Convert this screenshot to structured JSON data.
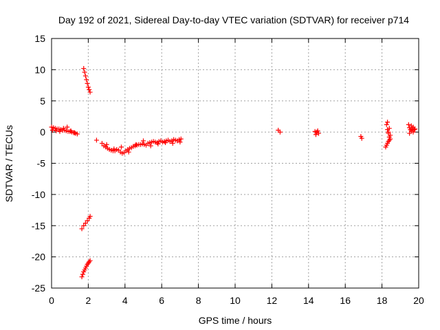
{
  "chart_data": {
    "type": "scatter",
    "title": "Day 192 of 2021, Sidereal Day-to-day VTEC variation (SDTVAR) for receiver p714",
    "xlabel": "GPS time / hours",
    "ylabel": "SDTVAR / TECUs",
    "xlim": [
      0,
      20
    ],
    "ylim": [
      -25,
      15
    ],
    "xticks": [
      0,
      2,
      4,
      6,
      8,
      10,
      12,
      14,
      16,
      18,
      20
    ],
    "yticks": [
      -25,
      -20,
      -15,
      -10,
      -5,
      0,
      5,
      10,
      15
    ],
    "grid": true,
    "marker": "+",
    "color": "#ff0000",
    "series": [
      {
        "name": "segment-0",
        "x": [
          0.0,
          0.1,
          0.2,
          0.3,
          0.4,
          0.5,
          0.6,
          0.7,
          0.8,
          0.9,
          1.0,
          1.1,
          1.2,
          1.3,
          1.4,
          0.05,
          0.25,
          0.45,
          0.65,
          0.85,
          1.05,
          1.25
        ],
        "y": [
          0.8,
          0.7,
          0.6,
          0.5,
          0.5,
          0.4,
          0.3,
          0.3,
          0.2,
          0.1,
          0.1,
          0.0,
          -0.1,
          -0.2,
          -0.3,
          0.3,
          0.2,
          0.1,
          0.6,
          0.8,
          0.2,
          -0.1
        ]
      },
      {
        "name": "segment-1",
        "x": [
          1.75,
          1.8,
          1.85,
          1.9,
          1.95,
          2.0,
          2.05,
          2.1
        ],
        "y": [
          10.2,
          9.6,
          9.0,
          8.4,
          7.8,
          7.2,
          6.8,
          6.4
        ]
      },
      {
        "name": "segment-2",
        "x": [
          1.65,
          1.75,
          1.85,
          1.95,
          2.05,
          2.1
        ],
        "y": [
          -15.5,
          -15.0,
          -14.6,
          -14.2,
          -13.8,
          -13.5
        ]
      },
      {
        "name": "segment-3",
        "x": [
          1.65,
          1.7,
          1.75,
          1.8,
          1.85,
          1.9,
          1.95,
          2.0,
          2.05,
          2.1
        ],
        "y": [
          -23.2,
          -22.8,
          -22.4,
          -22.1,
          -21.8,
          -21.5,
          -21.2,
          -21.0,
          -20.8,
          -20.6
        ]
      },
      {
        "name": "segment-4",
        "x": [
          2.45
        ],
        "y": [
          -1.3
        ]
      },
      {
        "name": "segment-5",
        "x": [
          2.75,
          2.85,
          2.95,
          3.05,
          3.15,
          3.25,
          3.35,
          3.45,
          3.55,
          3.65,
          3.75,
          3.85,
          3.95,
          4.05,
          4.15,
          4.25,
          4.35,
          4.45,
          4.55,
          4.65,
          4.75,
          4.85,
          4.95,
          5.05,
          5.15,
          5.25,
          5.35,
          5.45,
          5.55,
          5.65,
          5.75,
          5.85,
          5.95,
          6.05,
          6.15,
          6.25,
          6.35,
          6.45,
          6.55,
          6.65,
          6.75,
          6.85,
          6.95,
          7.05,
          3.0,
          3.4,
          3.8,
          4.2,
          4.6,
          5.0,
          5.4,
          5.8,
          6.2,
          6.6,
          7.0
        ],
        "y": [
          -1.8,
          -2.2,
          -2.4,
          -2.6,
          -2.8,
          -2.9,
          -3.0,
          -3.0,
          -2.8,
          -2.9,
          -3.2,
          -3.4,
          -3.3,
          -3.0,
          -2.8,
          -2.6,
          -2.5,
          -2.3,
          -2.2,
          -2.1,
          -2.0,
          -2.0,
          -1.9,
          -2.0,
          -2.1,
          -1.8,
          -1.7,
          -1.6,
          -1.5,
          -1.6,
          -1.7,
          -1.5,
          -1.4,
          -1.6,
          -1.5,
          -1.4,
          -1.3,
          -1.5,
          -1.4,
          -1.2,
          -1.3,
          -1.4,
          -1.2,
          -1.1,
          -2.0,
          -2.7,
          -2.4,
          -3.2,
          -2.0,
          -1.4,
          -2.2,
          -1.9,
          -1.7,
          -1.8,
          -1.6
        ]
      },
      {
        "name": "segment-6",
        "x": [
          12.35,
          12.45
        ],
        "y": [
          0.3,
          0.0
        ]
      },
      {
        "name": "segment-7",
        "x": [
          14.35,
          14.45,
          14.55,
          14.4,
          14.5
        ],
        "y": [
          0.1,
          0.0,
          -0.2,
          -0.4,
          0.2
        ]
      },
      {
        "name": "segment-8",
        "x": [
          16.85,
          16.9
        ],
        "y": [
          -0.7,
          -1.0
        ]
      },
      {
        "name": "segment-9",
        "x": [
          18.25,
          18.3,
          18.35,
          18.4,
          18.45,
          18.3,
          18.35,
          18.4
        ],
        "y": [
          1.2,
          0.4,
          -0.2,
          0.6,
          -0.5,
          1.6,
          0.0,
          -0.8
        ]
      },
      {
        "name": "segment-10",
        "x": [
          18.2,
          18.25,
          18.3,
          18.35,
          18.4,
          18.45
        ],
        "y": [
          -2.4,
          -2.1,
          -1.8,
          -1.5,
          -1.3,
          -1.1
        ]
      },
      {
        "name": "segment-11",
        "x": [
          19.45,
          19.5,
          19.55,
          19.6,
          19.65,
          19.7,
          19.75,
          19.8,
          19.5,
          19.6,
          19.7
        ],
        "y": [
          1.2,
          0.7,
          0.4,
          0.2,
          0.5,
          0.8,
          0.4,
          0.5,
          -0.2,
          1.0,
          0.0
        ]
      }
    ]
  }
}
